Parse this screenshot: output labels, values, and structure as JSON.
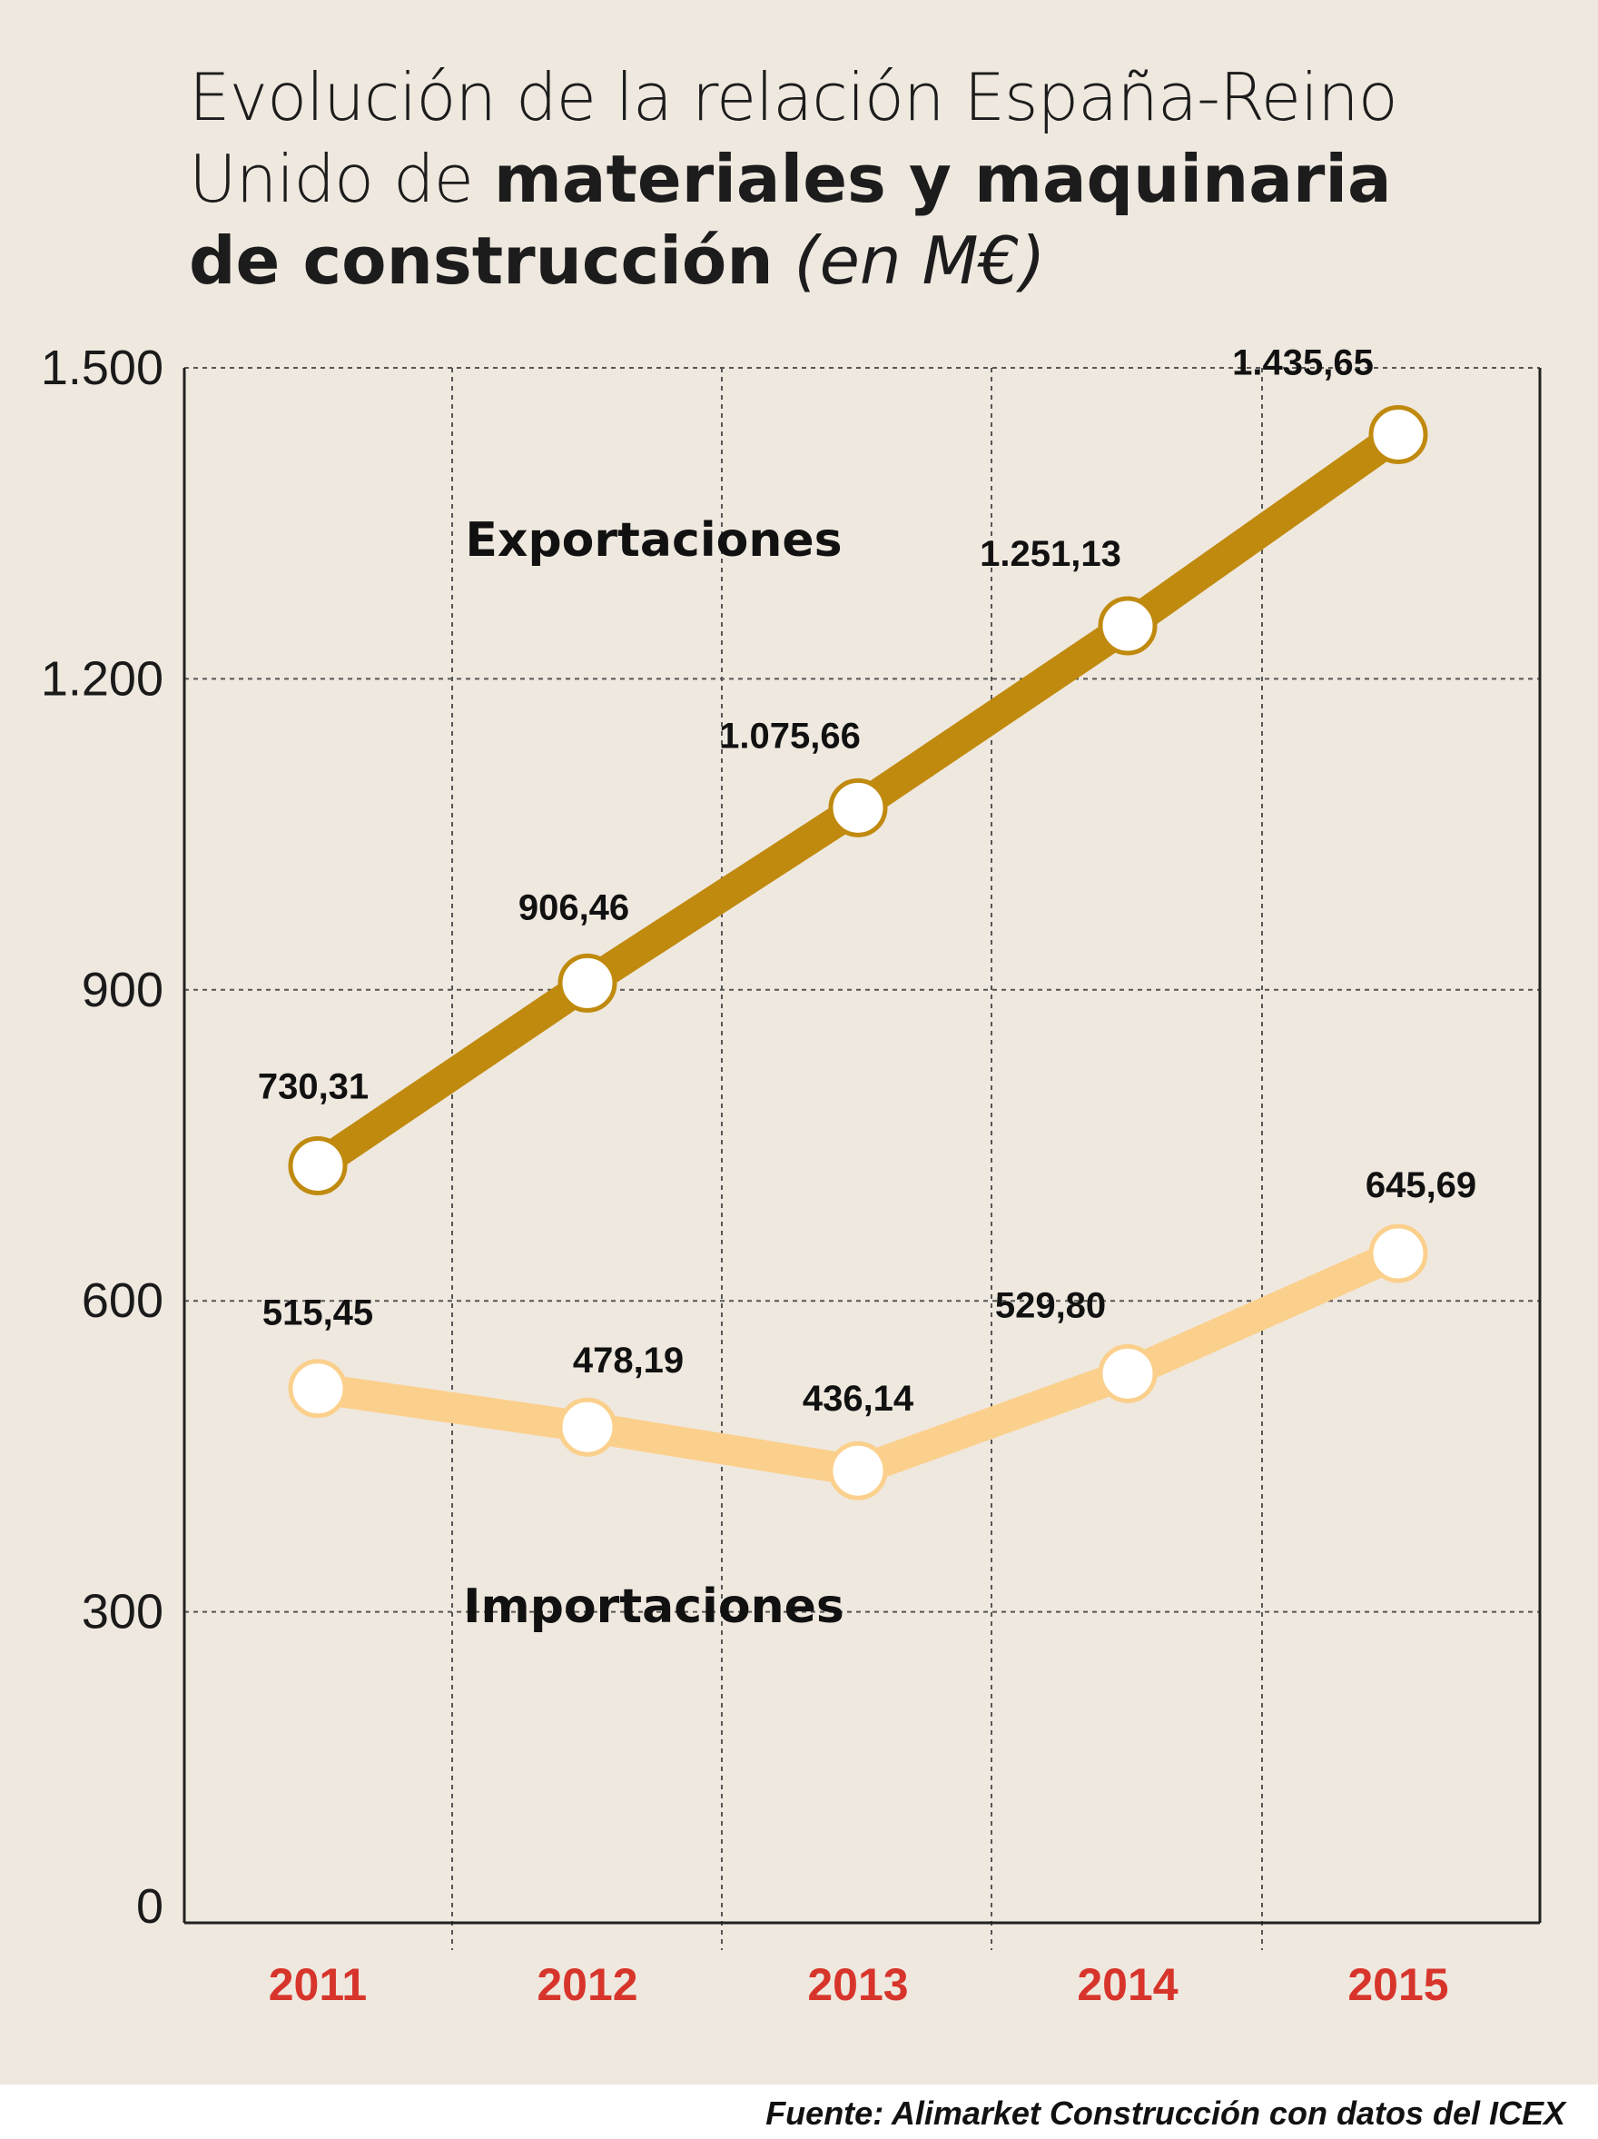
{
  "title": {
    "line1": "Evolución de la relación España-Reino",
    "line2_light": "Unido de",
    "line2_bold": "materiales y maquinaria",
    "line3_bold": "de construcción",
    "unit": "(en M€)"
  },
  "source": "Fuente: Alimarket Construcción con datos del ICEX",
  "colors": {
    "background": "#efe8df",
    "exports": "#c08a0e",
    "imports": "#fbd08c",
    "tick_year": "#d7352b"
  },
  "chart_data": {
    "type": "line",
    "title": "Evolución de la relación España-Reino Unido de materiales y maquinaria de construcción (en M€)",
    "categories": [
      "2011",
      "2012",
      "2013",
      "2014",
      "2015"
    ],
    "ylim": [
      0,
      1500
    ],
    "yticks": [
      0,
      300,
      600,
      900,
      1200,
      1500
    ],
    "ytick_labels": [
      "0",
      "300",
      "600",
      "900",
      "1.200",
      "1.500"
    ],
    "grid": true,
    "xlabel": "",
    "ylabel": "",
    "series": [
      {
        "name": "Exportaciones",
        "values": [
          730.31,
          906.46,
          1075.66,
          1251.13,
          1435.65
        ],
        "labels": [
          "730,31",
          "906,46",
          "1.075,66",
          "1.251,13",
          "1.435,65"
        ]
      },
      {
        "name": "Importaciones",
        "values": [
          515.45,
          478.19,
          436.14,
          529.8,
          645.69
        ],
        "labels": [
          "515,45",
          "478,19",
          "436,14",
          "529,80",
          "645,69"
        ]
      }
    ]
  }
}
